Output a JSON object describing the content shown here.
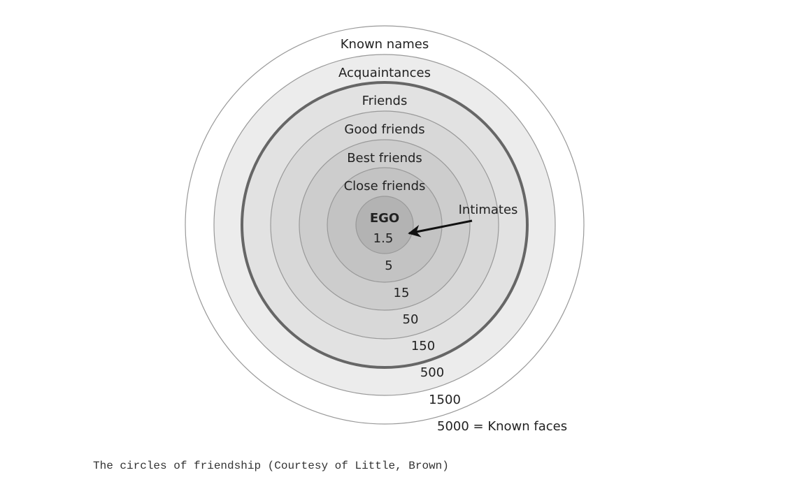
{
  "diagram": {
    "ring_labels": [
      "Known names",
      "Acquaintances",
      "Friends",
      "Good friends",
      "Best friends",
      "Close friends"
    ],
    "ego": "EGO",
    "counts": [
      1.5,
      5,
      15,
      50,
      150,
      500,
      1500
    ],
    "known_faces": "5000 = Known faces",
    "intimates": "Intimates"
  },
  "caption": "The circles of friendship (Courtesy of Little, Brown)"
}
